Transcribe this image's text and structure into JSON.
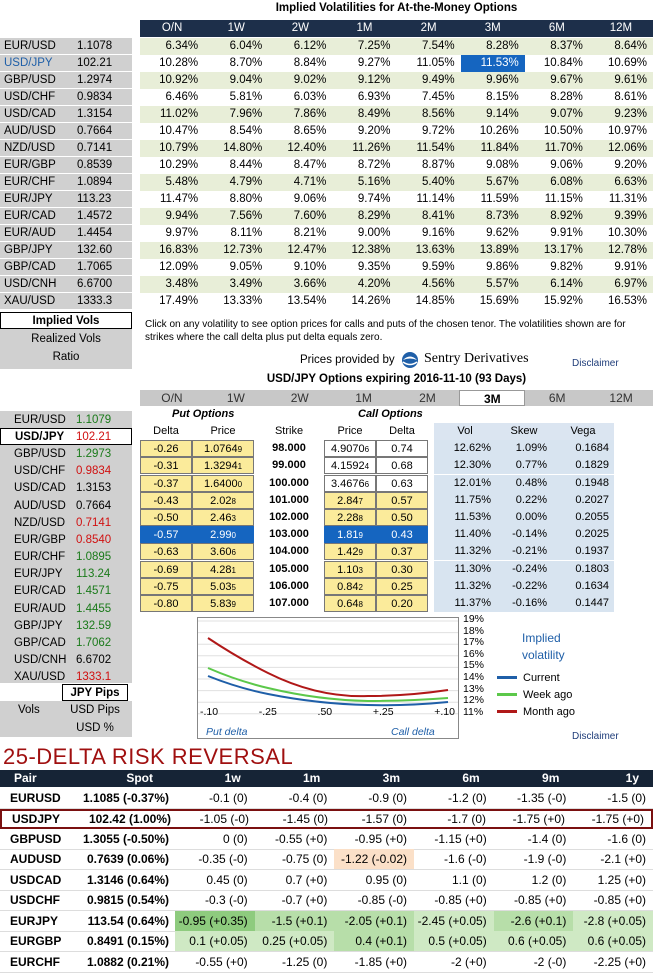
{
  "section1": {
    "title": "Implied Volatilities for At-the-Money Options",
    "tenors": [
      "O/N",
      "1W",
      "2W",
      "1M",
      "2M",
      "3M",
      "6M",
      "12M"
    ],
    "rows": [
      {
        "pair": "EUR/USD",
        "spot": "1.1078",
        "vals": [
          "6.34%",
          "6.04%",
          "6.12%",
          "7.25%",
          "7.54%",
          "8.28%",
          "8.37%",
          "8.64%"
        ]
      },
      {
        "pair": "USD/JPY",
        "spot": "102.21",
        "vals": [
          "10.28%",
          "8.70%",
          "8.84%",
          "9.27%",
          "11.05%",
          "11.53%",
          "10.84%",
          "10.69%"
        ]
      },
      {
        "pair": "GBP/USD",
        "spot": "1.2974",
        "vals": [
          "10.92%",
          "9.04%",
          "9.02%",
          "9.12%",
          "9.49%",
          "9.96%",
          "9.67%",
          "9.61%"
        ]
      },
      {
        "pair": "USD/CHF",
        "spot": "0.9834",
        "vals": [
          "6.46%",
          "5.81%",
          "6.03%",
          "6.93%",
          "7.45%",
          "8.15%",
          "8.28%",
          "8.61%"
        ]
      },
      {
        "pair": "USD/CAD",
        "spot": "1.3154",
        "vals": [
          "11.02%",
          "7.96%",
          "7.86%",
          "8.49%",
          "8.56%",
          "9.14%",
          "9.07%",
          "9.23%"
        ]
      },
      {
        "pair": "AUD/USD",
        "spot": "0.7664",
        "vals": [
          "10.47%",
          "8.54%",
          "8.65%",
          "9.20%",
          "9.72%",
          "10.26%",
          "10.50%",
          "10.97%"
        ]
      },
      {
        "pair": "NZD/USD",
        "spot": "0.7141",
        "vals": [
          "10.79%",
          "14.80%",
          "12.40%",
          "11.26%",
          "11.54%",
          "11.84%",
          "11.70%",
          "12.06%"
        ]
      },
      {
        "pair": "EUR/GBP",
        "spot": "0.8539",
        "vals": [
          "10.29%",
          "8.44%",
          "8.47%",
          "8.72%",
          "8.87%",
          "9.08%",
          "9.06%",
          "9.20%"
        ]
      },
      {
        "pair": "EUR/CHF",
        "spot": "1.0894",
        "vals": [
          "5.48%",
          "4.79%",
          "4.71%",
          "5.16%",
          "5.40%",
          "5.67%",
          "6.08%",
          "6.63%"
        ]
      },
      {
        "pair": "EUR/JPY",
        "spot": "113.23",
        "vals": [
          "11.47%",
          "8.80%",
          "9.06%",
          "9.74%",
          "11.14%",
          "11.59%",
          "11.15%",
          "11.31%"
        ]
      },
      {
        "pair": "EUR/CAD",
        "spot": "1.4572",
        "vals": [
          "9.94%",
          "7.56%",
          "7.60%",
          "8.29%",
          "8.41%",
          "8.73%",
          "8.92%",
          "9.39%"
        ]
      },
      {
        "pair": "EUR/AUD",
        "spot": "1.4454",
        "vals": [
          "9.97%",
          "8.11%",
          "8.21%",
          "9.00%",
          "9.16%",
          "9.62%",
          "9.91%",
          "10.30%"
        ]
      },
      {
        "pair": "GBP/JPY",
        "spot": "132.60",
        "vals": [
          "16.83%",
          "12.73%",
          "12.47%",
          "12.38%",
          "13.63%",
          "13.89%",
          "13.17%",
          "12.78%"
        ]
      },
      {
        "pair": "GBP/CAD",
        "spot": "1.7065",
        "vals": [
          "12.09%",
          "9.05%",
          "9.10%",
          "9.35%",
          "9.59%",
          "9.86%",
          "9.82%",
          "9.91%"
        ]
      },
      {
        "pair": "USD/CNH",
        "spot": "6.6700",
        "vals": [
          "3.48%",
          "3.49%",
          "3.66%",
          "4.20%",
          "4.56%",
          "5.57%",
          "6.14%",
          "6.97%"
        ]
      },
      {
        "pair": "XAU/USD",
        "spot": "1333.3",
        "vals": [
          "17.49%",
          "13.33%",
          "13.54%",
          "14.26%",
          "14.85%",
          "15.69%",
          "15.92%",
          "16.53%"
        ]
      }
    ],
    "tabs": [
      "Implied Vols",
      "Realized Vols",
      "Ratio"
    ],
    "note": "Click on any volatility to see option prices for calls and puts of the chosen tenor. The volatilities shown are for strikes where the call delta plus put delta equals zero.",
    "provider_label": "Prices provided by",
    "provider_name": "Sentry Derivatives",
    "disclaimer": "Disclaimer"
  },
  "section2": {
    "title": "USD/JPY Options expiring 2016-11-10 (93 Days)",
    "tenors": [
      "O/N",
      "1W",
      "2W",
      "1M",
      "2M",
      "3M",
      "6M",
      "12M"
    ],
    "pairs": [
      {
        "pair": "EUR/USD",
        "spot": "1.1079",
        "color": "grn"
      },
      {
        "pair": "USD/JPY",
        "spot": "102.21",
        "color": "red"
      },
      {
        "pair": "GBP/USD",
        "spot": "1.2973",
        "color": "grn"
      },
      {
        "pair": "USD/CHF",
        "spot": "0.9834",
        "color": "red"
      },
      {
        "pair": "USD/CAD",
        "spot": "1.3153",
        "color": ""
      },
      {
        "pair": "AUD/USD",
        "spot": "0.7664",
        "color": ""
      },
      {
        "pair": "NZD/USD",
        "spot": "0.7141",
        "color": "red"
      },
      {
        "pair": "EUR/GBP",
        "spot": "0.8540",
        "color": "red"
      },
      {
        "pair": "EUR/CHF",
        "spot": "1.0895",
        "color": "grn"
      },
      {
        "pair": "EUR/JPY",
        "spot": "113.24",
        "color": "grn"
      },
      {
        "pair": "EUR/CAD",
        "spot": "1.4571",
        "color": "grn"
      },
      {
        "pair": "EUR/AUD",
        "spot": "1.4455",
        "color": "grn"
      },
      {
        "pair": "GBP/JPY",
        "spot": "132.59",
        "color": "grn"
      },
      {
        "pair": "GBP/CAD",
        "spot": "1.7062",
        "color": "grn"
      },
      {
        "pair": "USD/CNH",
        "spot": "6.6702",
        "color": ""
      },
      {
        "pair": "XAU/USD",
        "spot": "1333.1",
        "color": "red"
      }
    ],
    "put_options_label": "Put Options",
    "call_options_label": "Call Options",
    "headers": [
      "Delta",
      "Price",
      "Strike",
      "Price",
      "Delta",
      "Vol",
      "Skew",
      "Vega"
    ],
    "rows": [
      {
        "pd": "-0.26",
        "pp": "1.0764",
        "pps": "9",
        "k": "98.000",
        "cp": "4.9070",
        "cps": "6",
        "cd": "0.74",
        "vol": "12.62%",
        "skew": "1.09%",
        "vega": "0.1684"
      },
      {
        "pd": "-0.31",
        "pp": "1.3294",
        "pps": "1",
        "k": "99.000",
        "cp": "4.1592",
        "cps": "4",
        "cd": "0.68",
        "vol": "12.30%",
        "skew": "0.77%",
        "vega": "0.1829"
      },
      {
        "pd": "-0.37",
        "pp": "1.6400",
        "pps": "0",
        "k": "100.000",
        "cp": "3.4676",
        "cps": "6",
        "cd": "0.63",
        "vol": "12.01%",
        "skew": "0.48%",
        "vega": "0.1948"
      },
      {
        "pd": "-0.43",
        "pp": "2.02",
        "pps": "8",
        "k": "101.000",
        "cp": "2.84",
        "cps": "7",
        "cd": "0.57",
        "vol": "11.75%",
        "skew": "0.22%",
        "vega": "0.2027"
      },
      {
        "pd": "-0.50",
        "pp": "2.46",
        "pps": "3",
        "k": "102.000",
        "cp": "2.28",
        "cps": "8",
        "cd": "0.50",
        "vol": "11.53%",
        "skew": "0.00%",
        "vega": "0.2055"
      },
      {
        "pd": "-0.57",
        "pp": "2.99",
        "pps": "0",
        "k": "103.000",
        "cp": "1.81",
        "cps": "9",
        "cd": "0.43",
        "vol": "11.40%",
        "skew": "-0.14%",
        "vega": "0.2025"
      },
      {
        "pd": "-0.63",
        "pp": "3.60",
        "pps": "6",
        "k": "104.000",
        "cp": "1.42",
        "cps": "9",
        "cd": "0.37",
        "vol": "11.32%",
        "skew": "-0.21%",
        "vega": "0.1937"
      },
      {
        "pd": "-0.69",
        "pp": "4.28",
        "pps": "1",
        "k": "105.000",
        "cp": "1.10",
        "cps": "3",
        "cd": "0.30",
        "vol": "11.30%",
        "skew": "-0.24%",
        "vega": "0.1803"
      },
      {
        "pd": "-0.75",
        "pp": "5.03",
        "pps": "5",
        "k": "106.000",
        "cp": "0.84",
        "cps": "2",
        "cd": "0.25",
        "vol": "11.32%",
        "skew": "-0.22%",
        "vega": "0.1634"
      },
      {
        "pd": "-0.80",
        "pp": "5.83",
        "pps": "9",
        "k": "107.000",
        "cp": "0.64",
        "cps": "8",
        "cd": "0.20",
        "vol": "11.37%",
        "skew": "-0.16%",
        "vega": "0.1447"
      }
    ],
    "chart": {
      "y_ticks": [
        "19%",
        "18%",
        "17%",
        "16%",
        "15%",
        "14%",
        "13%",
        "12%",
        "11%"
      ],
      "x_ticks": [
        "-.10",
        "-.25",
        ".50",
        "+.25",
        "+.10"
      ],
      "put_label": "Put delta",
      "call_label": "Call delta",
      "legend_title": "Implied volatility",
      "series": [
        {
          "name": "Current",
          "color": "#1f5fa8"
        },
        {
          "name": "Week ago",
          "color": "#5cc84a"
        },
        {
          "name": "Month ago",
          "color": "#b01818"
        }
      ]
    },
    "bottom_tabs": [
      {
        "left": "",
        "right": "JPY Pips",
        "sel": true
      },
      {
        "left": "Vols",
        "right": "USD Pips",
        "sel": false
      },
      {
        "left": "",
        "right": "USD %",
        "sel": false
      }
    ],
    "disclaimer": "Disclaimer"
  },
  "section3": {
    "title": "25-DELTA RISK REVERSAL",
    "headers": [
      "Pair",
      "Spot",
      "1w",
      "1m",
      "3m",
      "6m",
      "9m",
      "1y"
    ],
    "rows": [
      {
        "pair": "EURUSD",
        "spot": "1.1085 (-0.37%)",
        "vals": [
          "-0.1 (0)",
          "-0.4 (0)",
          "-0.9 (0)",
          "-1.2 (0)",
          "-1.35 (-0)",
          "-1.5 (0)"
        ],
        "bg": [
          "",
          "",
          "",
          "",
          "",
          ""
        ]
      },
      {
        "pair": "USDJPY",
        "spot": "102.42 (1.00%)",
        "vals": [
          "-1.05 (-0)",
          "-1.45 (0)",
          "-1.57 (0)",
          "-1.7 (0)",
          "-1.75 (+0)",
          "-1.75 (+0)"
        ],
        "bg": [
          "",
          "",
          "",
          "",
          "",
          ""
        ],
        "sel": true
      },
      {
        "pair": "GBPUSD",
        "spot": "1.3055 (-0.50%)",
        "vals": [
          "0 (0)",
          "-0.55 (+0)",
          "-0.95 (+0)",
          "-1.15 (+0)",
          "-1.4 (0)",
          "-1.6 (0)"
        ],
        "bg": [
          "",
          "",
          "",
          "",
          "",
          ""
        ]
      },
      {
        "pair": "AUDUSD",
        "spot": "0.7639 (0.06%)",
        "vals": [
          "-0.35 (-0)",
          "-0.75 (0)",
          "-1.22 (-0.02)",
          "-1.6 (-0)",
          "-1.9 (-0)",
          "-2.1 (+0)"
        ],
        "bg": [
          "",
          "",
          "pk",
          "",
          "",
          ""
        ]
      },
      {
        "pair": "USDCAD",
        "spot": "1.3146 (0.64%)",
        "vals": [
          "0.45 (0)",
          "0.7 (+0)",
          "0.95 (0)",
          "1.1 (0)",
          "1.2 (0)",
          "1.25 (+0)"
        ],
        "bg": [
          "",
          "",
          "",
          "",
          "",
          ""
        ]
      },
      {
        "pair": "USDCHF",
        "spot": "0.9815 (0.54%)",
        "vals": [
          "-0.3 (-0)",
          "-0.7 (+0)",
          "-0.85 (-0)",
          "-0.85 (+0)",
          "-0.85 (+0)",
          "-0.85 (+0)"
        ],
        "bg": [
          "",
          "",
          "",
          "",
          "",
          ""
        ]
      },
      {
        "pair": "EURJPY",
        "spot": "113.54 (0.64%)",
        "vals": [
          "-0.95 (+0.35)",
          "-1.5 (+0.1)",
          "-2.05 (+0.1)",
          "-2.45 (+0.05)",
          "-2.6 (+0.1)",
          "-2.8 (+0.05)"
        ],
        "bg": [
          "gr1",
          "gr2",
          "gr2",
          "gr3",
          "gr2",
          "gr3"
        ]
      },
      {
        "pair": "EURGBP",
        "spot": "0.8491 (0.15%)",
        "vals": [
          "0.1 (+0.05)",
          "0.25 (+0.05)",
          "0.4 (+0.1)",
          "0.5 (+0.05)",
          "0.6 (+0.05)",
          "0.6 (+0.05)"
        ],
        "bg": [
          "gr3",
          "gr3",
          "gr2",
          "gr3",
          "gr3",
          "gr3"
        ]
      },
      {
        "pair": "EURCHF",
        "spot": "1.0882 (0.21%)",
        "vals": [
          "-0.55 (+0)",
          "-1.25 (0)",
          "-1.85 (+0)",
          "-2 (+0)",
          "-2 (-0)",
          "-2.25 (+0)"
        ],
        "bg": [
          "",
          "",
          "",
          "",
          "",
          ""
        ]
      }
    ]
  }
}
